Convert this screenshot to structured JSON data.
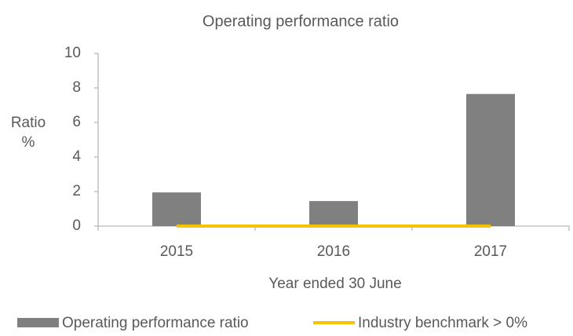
{
  "chart_data": {
    "type": "bar",
    "title": "Operating performance ratio",
    "x_label": "Year ended 30 June",
    "y_label": [
      "Ratio",
      "%"
    ],
    "categories": [
      "2015",
      "2016",
      "2017"
    ],
    "series": [
      {
        "name": "Operating performance ratio",
        "type": "bar",
        "color": "#808080",
        "values": [
          1.95,
          1.45,
          7.65
        ]
      },
      {
        "name": "Industry benchmark > 0%",
        "type": "line",
        "color": "#f2c500",
        "values": [
          0,
          0,
          0
        ]
      }
    ],
    "ylim": [
      0,
      10
    ],
    "yticks": [
      0,
      2,
      4,
      6,
      8,
      10
    ],
    "grid": false
  }
}
